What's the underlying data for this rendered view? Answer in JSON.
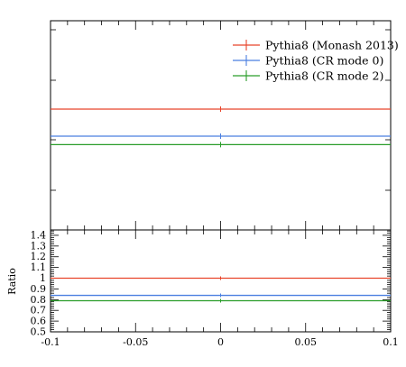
{
  "chart_data": {
    "type": "line",
    "x": [
      -0.1,
      0.1
    ],
    "xlim": [
      -0.1,
      0.1
    ],
    "xticks": [
      -0.1,
      -0.05,
      0,
      0.05,
      0.1
    ],
    "xtick_labels": [
      "-0.1",
      "-0.05",
      "0",
      "0.05",
      "0.1"
    ],
    "main_panel": {
      "series": [
        {
          "name": "Pythia8 (Monash 2013)",
          "color": "#e8442a",
          "y": 1.0
        },
        {
          "name": "Pythia8 (CR mode 0)",
          "color": "#4a7fe0",
          "y": 0.84
        },
        {
          "name": "Pythia8 (CR mode 2)",
          "color": "#2a9d2a",
          "y": 0.79
        }
      ],
      "legend_position": "top-right"
    },
    "ratio_panel": {
      "ylabel": "Ratio",
      "ylim": [
        0.5,
        1.45
      ],
      "yticks": [
        0.5,
        0.6,
        0.7,
        0.8,
        0.9,
        1,
        1.1,
        1.2,
        1.3,
        1.4
      ],
      "ytick_labels": [
        "0.5",
        "0.6",
        "0.7",
        "0.8",
        "0.9",
        "1",
        "1.1",
        "1.2",
        "1.3",
        "1.4"
      ],
      "series": [
        {
          "name": "Pythia8 (Monash 2013)",
          "color": "#e8442a",
          "y": 1.0
        },
        {
          "name": "Pythia8 (CR mode 0)",
          "color": "#4a7fe0",
          "y": 0.84
        },
        {
          "name": "Pythia8 (CR mode 2)",
          "color": "#2a9d2a",
          "y": 0.79
        }
      ]
    }
  }
}
